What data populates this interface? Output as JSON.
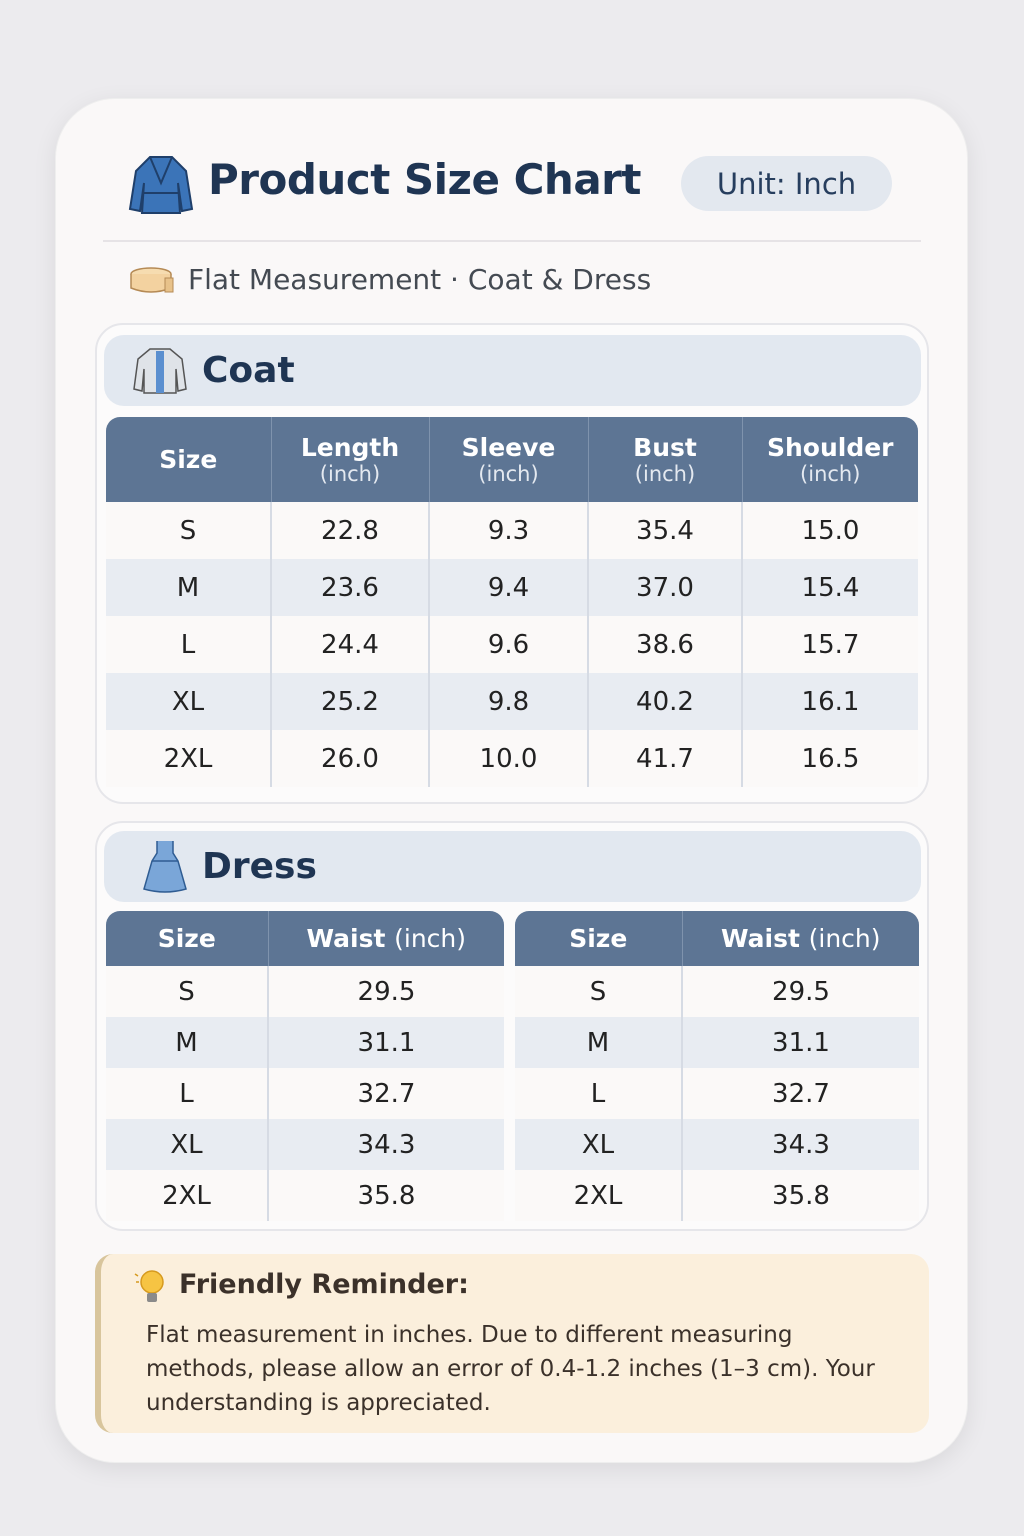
{
  "header": {
    "title": "Product Size Chart",
    "unit_badge": "Unit: Inch",
    "subtitle": "Flat Measurement · Coat & Dress"
  },
  "coat": {
    "title": "Coat",
    "columns": [
      {
        "name": "Size",
        "unit": ""
      },
      {
        "name": "Length",
        "unit": "(inch)"
      },
      {
        "name": "Sleeve",
        "unit": "(inch)"
      },
      {
        "name": "Bust",
        "unit": "(inch)"
      },
      {
        "name": "Shoulder",
        "unit": "(inch)"
      }
    ],
    "rows": [
      [
        "S",
        "22.8",
        "9.3",
        "35.4",
        "15.0"
      ],
      [
        "M",
        "23.6",
        "9.4",
        "37.0",
        "15.4"
      ],
      [
        "L",
        "24.4",
        "9.6",
        "38.6",
        "15.7"
      ],
      [
        "XL",
        "25.2",
        "9.8",
        "40.2",
        "16.1"
      ],
      [
        "2XL",
        "26.0",
        "10.0",
        "41.7",
        "16.5"
      ]
    ]
  },
  "dress": {
    "title": "Dress",
    "tables": [
      {
        "columns": [
          "Size",
          "Waist",
          "(inch)"
        ],
        "rows": [
          [
            "S",
            "29.5"
          ],
          [
            "M",
            "31.1"
          ],
          [
            "L",
            "32.7"
          ],
          [
            "XL",
            "34.3"
          ],
          [
            "2XL",
            "35.8"
          ]
        ]
      },
      {
        "columns": [
          "Size",
          "Waist",
          "(inch)"
        ],
        "rows": [
          [
            "S",
            "29.5"
          ],
          [
            "M",
            "31.1"
          ],
          [
            "L",
            "32.7"
          ],
          [
            "XL",
            "34.3"
          ],
          [
            "2XL",
            "35.8"
          ]
        ]
      }
    ]
  },
  "reminder": {
    "title": "Friendly Reminder:",
    "text": "Flat measurement in inches. Due to different measuring methods, please allow an error of 0.4-1.2 inches (1–3 cm). Your understanding is appreciated."
  },
  "colors": {
    "header_row": "#5d7594",
    "band": "#e2e8f0",
    "title": "#1f3553",
    "reminder_bg": "#fbefdc"
  }
}
